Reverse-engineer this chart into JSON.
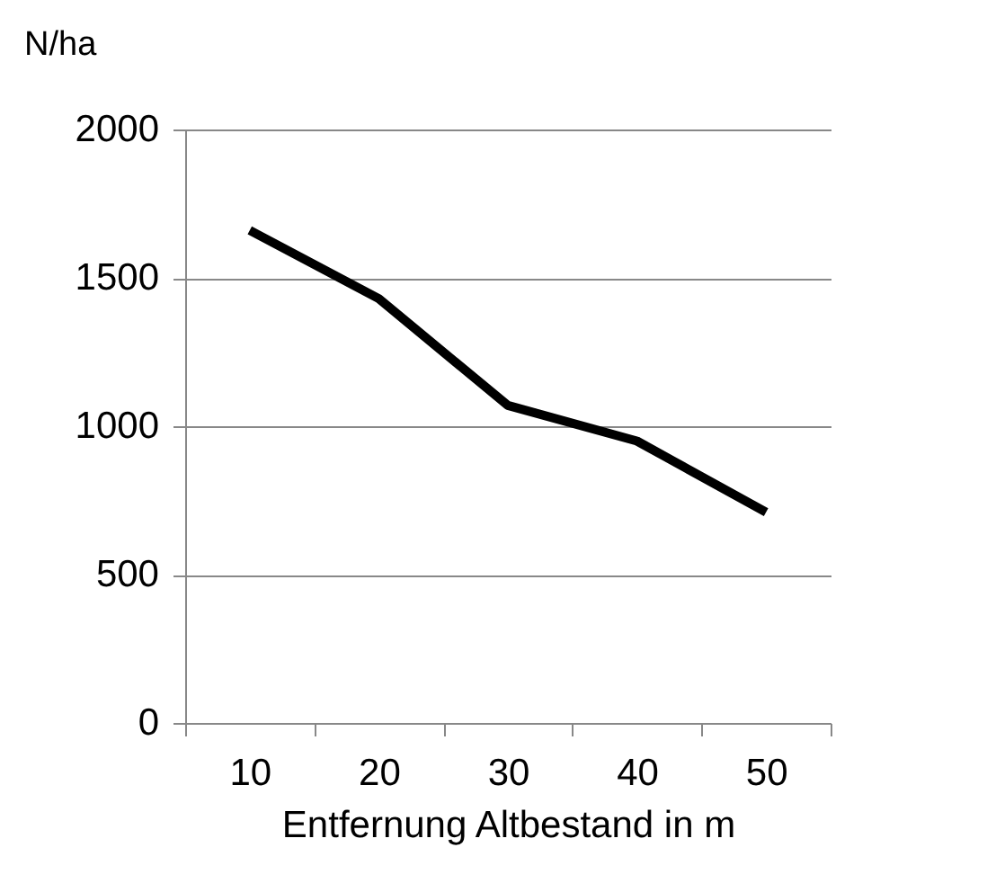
{
  "chart_data": {
    "type": "line",
    "xlabel": "Entfernung Altbestand in m",
    "ylabel": "N/ha",
    "categories": [
      "10",
      "20",
      "30",
      "40",
      "50"
    ],
    "series": [
      {
        "color": "#000000",
        "values": [
          1660,
          1430,
          1070,
          950,
          710
        ]
      }
    ],
    "ylim": [
      0,
      2000
    ],
    "yticks": [
      0,
      500,
      1000,
      1500,
      2000
    ],
    "grid": "y",
    "marker": "none",
    "line_style": "solid"
  }
}
